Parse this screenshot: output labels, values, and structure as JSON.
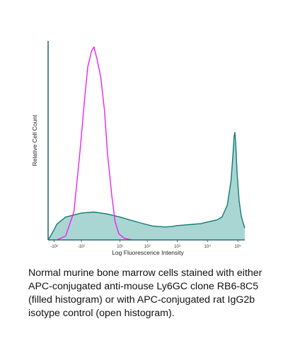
{
  "chart_data": {
    "type": "area",
    "title": "",
    "xlabel": "Log Fluorescence Intensity",
    "ylabel": "Relative Cell Count",
    "x_scale": "biexponential",
    "x_ticks": [
      "-10²",
      "-10¹",
      "10¹",
      "10²",
      "10³",
      "10⁴",
      "10⁵"
    ],
    "ylim": [
      0,
      1
    ],
    "y_ticks_shown": false,
    "grid": false,
    "legend": "none",
    "colors": {
      "filled": "#137a73",
      "fill_light": "#a9d6d3",
      "open": "#ee22ee",
      "axis": "#2b6b70"
    },
    "series": [
      {
        "style": "filled",
        "points": [
          [
            -160,
            0.0
          ],
          [
            -120,
            0.03
          ],
          [
            -80,
            0.08
          ],
          [
            -40,
            0.115
          ],
          [
            -10,
            0.135
          ],
          [
            -2,
            0.14
          ],
          [
            2,
            0.13
          ],
          [
            10,
            0.115
          ],
          [
            25,
            0.1
          ],
          [
            60,
            0.085
          ],
          [
            150,
            0.07
          ],
          [
            400,
            0.065
          ],
          [
            700,
            0.068
          ],
          [
            1000,
            0.072
          ],
          [
            3000,
            0.078
          ],
          [
            6000,
            0.082
          ],
          [
            10000,
            0.09
          ],
          [
            20000,
            0.1
          ],
          [
            30000,
            0.115
          ],
          [
            45000,
            0.175
          ],
          [
            60000,
            0.3
          ],
          [
            70000,
            0.44
          ],
          [
            75000,
            0.52
          ],
          [
            80000,
            0.54
          ],
          [
            85000,
            0.49
          ],
          [
            95000,
            0.33
          ],
          [
            110000,
            0.2
          ],
          [
            130000,
            0.12
          ],
          [
            150000,
            0.085
          ],
          [
            170000,
            0.06
          ]
        ]
      },
      {
        "style": "open",
        "points": [
          [
            -80,
            0.0
          ],
          [
            -40,
            0.02
          ],
          [
            -20,
            0.14
          ],
          [
            -12,
            0.42
          ],
          [
            -7,
            0.72
          ],
          [
            -5,
            0.87
          ],
          [
            -3,
            0.95
          ],
          [
            -2,
            0.97
          ],
          [
            -1,
            0.91
          ],
          [
            0,
            0.82
          ],
          [
            1,
            0.65
          ],
          [
            2,
            0.44
          ],
          [
            4,
            0.22
          ],
          [
            6,
            0.09
          ],
          [
            9,
            0.03
          ],
          [
            15,
            0.008
          ],
          [
            30,
            0.0
          ]
        ]
      }
    ]
  },
  "caption": "Normal murine bone marrow cells stained with either APC-conjugated anti-mouse Ly6GC clone RB6-8C5 (filled histogram) or with APC-conjugated rat IgG2b isotype control (open histogram)."
}
